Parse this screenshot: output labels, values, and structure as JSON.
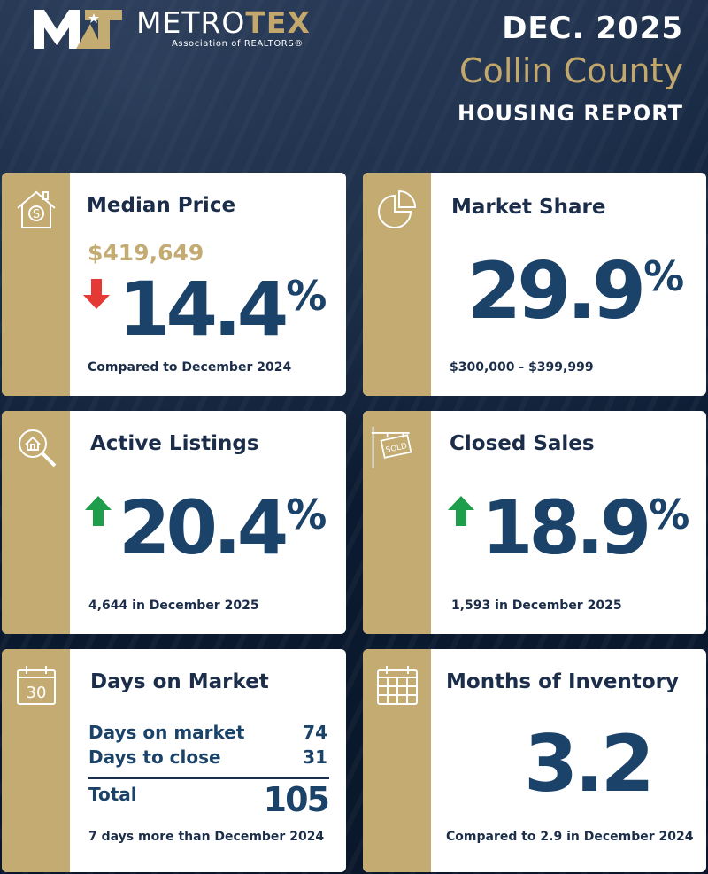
{
  "header": {
    "brand_left": "METRO",
    "brand_right": "TEX",
    "brand_sub": "Association of REALTORS®",
    "date": "DEC. 2025",
    "county": "Collin County",
    "report": "HOUSING REPORT"
  },
  "colors": {
    "navy": "#1b2d49",
    "value_blue": "#1b4268",
    "gold": "#c3ab72",
    "down_red": "#e53935",
    "up_green": "#1e9e4a"
  },
  "median_price": {
    "title": "Median Price",
    "price": "$419,649",
    "change": "14.4",
    "change_unit": "%",
    "direction": "down",
    "footnote": "Compared to December 2024",
    "icon": "house-dollar-icon"
  },
  "market_share": {
    "title": "Market Share",
    "value": "29.9",
    "unit": "%",
    "footnote": "$300,000 - $399,999",
    "icon": "pie-chart-icon"
  },
  "active_listings": {
    "title": "Active Listings",
    "change": "20.4",
    "change_unit": "%",
    "direction": "up",
    "footnote": "4,644 in December 2025",
    "icon": "house-search-icon"
  },
  "closed_sales": {
    "title": "Closed Sales",
    "change": "18.9",
    "change_unit": "%",
    "direction": "up",
    "footnote": "1,593 in December 2025",
    "icon": "sold-sign-icon"
  },
  "days_on_market": {
    "title": "Days on Market",
    "icon_day": "30",
    "rows": [
      {
        "label": "Days on market",
        "value": "74"
      },
      {
        "label": "Days to close",
        "value": "31"
      }
    ],
    "total_label": "Total",
    "total_value": "105",
    "footnote": "7 days more than December 2024",
    "icon": "calendar-icon"
  },
  "months_inventory": {
    "title": "Months of Inventory",
    "value": "3.2",
    "footnote": "Compared to 2.9 in December 2024",
    "icon": "calendar-grid-icon"
  }
}
